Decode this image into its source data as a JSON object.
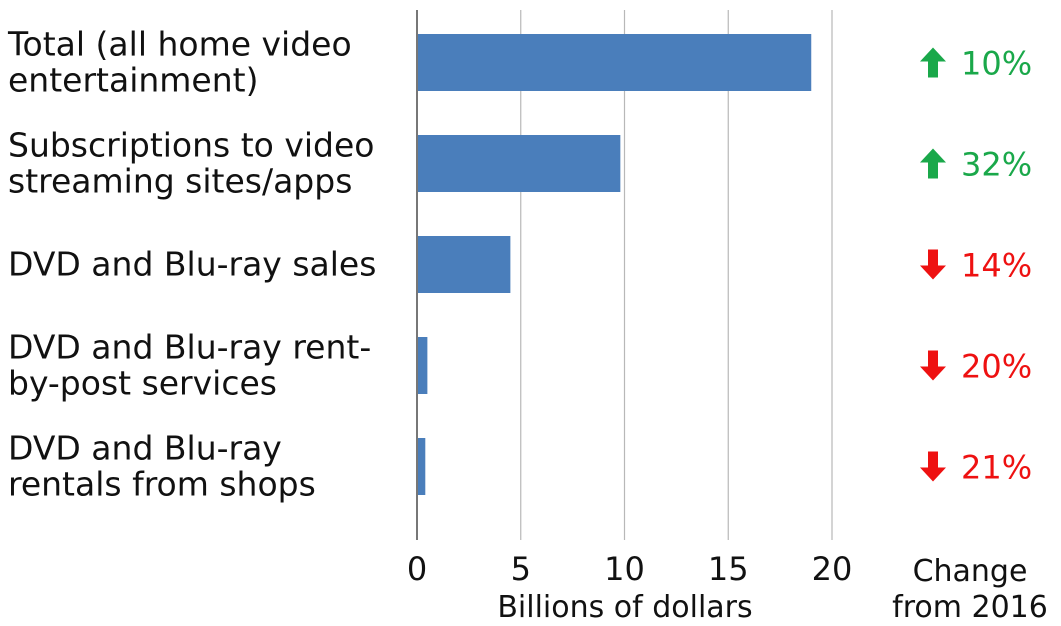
{
  "chart_data": {
    "type": "bar",
    "orientation": "horizontal",
    "categories": [
      [
        "Total (all home video",
        "entertainment)"
      ],
      [
        "Subscriptions to video",
        "streaming sites/apps"
      ],
      [
        "DVD and Blu-ray sales"
      ],
      [
        "DVD and Blu-ray rent-",
        "by-post services"
      ],
      [
        "DVD and Blu-ray",
        "rentals from shops"
      ]
    ],
    "values": [
      19.0,
      9.8,
      4.5,
      0.5,
      0.4
    ],
    "xlabel": "Billions of dollars",
    "xlim": [
      0,
      20
    ],
    "ticks": [
      "0",
      "5",
      "10",
      "15",
      "20"
    ],
    "grid": true,
    "bar_color": "#4a7ebb",
    "change": {
      "title": [
        "Change",
        "from 2016"
      ],
      "items": [
        {
          "direction": "up",
          "text": "10%"
        },
        {
          "direction": "up",
          "text": "32%"
        },
        {
          "direction": "down",
          "text": "14%"
        },
        {
          "direction": "down",
          "text": "20%"
        },
        {
          "direction": "down",
          "text": "21%"
        }
      ],
      "up_color": "#1aa84a",
      "down_color": "#ee1111"
    }
  }
}
